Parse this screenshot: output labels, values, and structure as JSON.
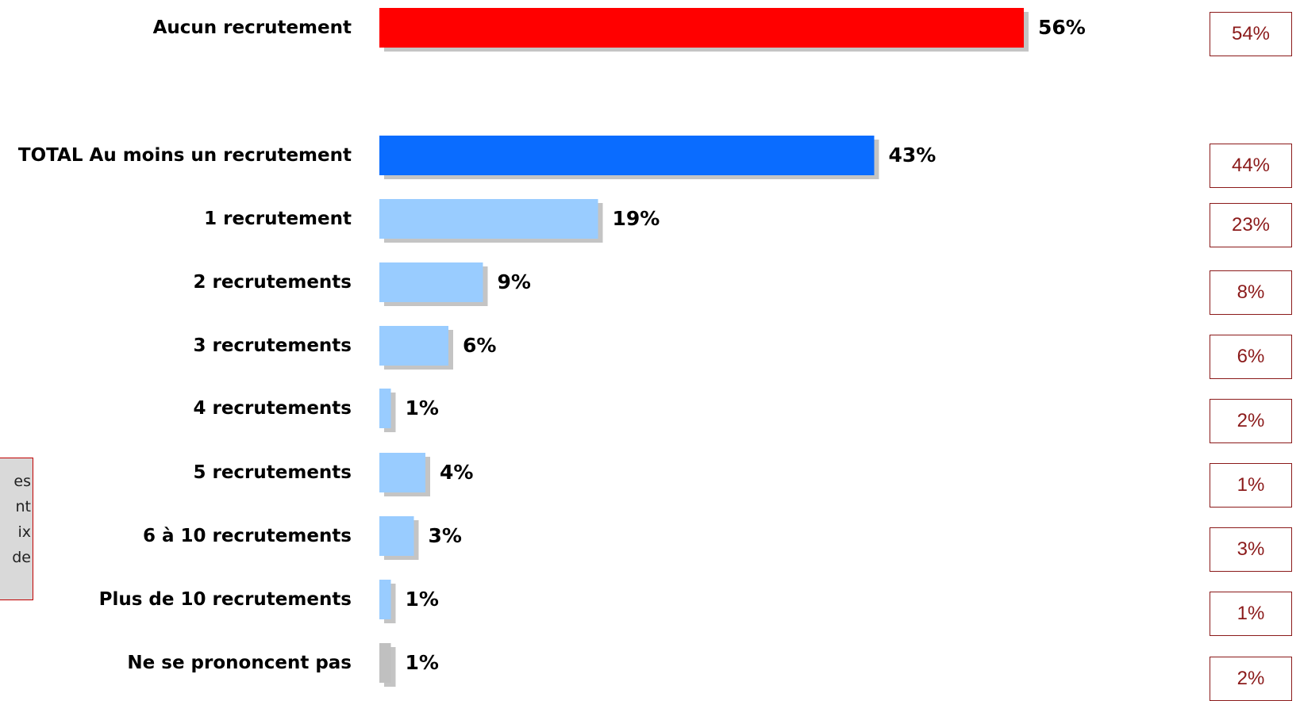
{
  "chart_data": {
    "type": "bar",
    "orientation": "horizontal",
    "categories": [
      "Aucun recrutement",
      "TOTAL Au moins un recrutement",
      "1 recrutement",
      "2 recrutements",
      "3 recrutements",
      "4 recrutements",
      "5 recrutements",
      "6 à 10 recrutements",
      "Plus de 10 recrutements",
      "Ne se prononcent pas"
    ],
    "series": [
      {
        "values": [
          56,
          43,
          19,
          9,
          6,
          1,
          4,
          3,
          1,
          1
        ],
        "value_labels": [
          "56%",
          "43%",
          "19%",
          "9%",
          "6%",
          "1%",
          "4%",
          "3%",
          "1%",
          "1%"
        ],
        "colors": [
          "#ff0000",
          "#0a6cff",
          "#99ccff",
          "#99ccff",
          "#99ccff",
          "#99ccff",
          "#99ccff",
          "#99ccff",
          "#99ccff",
          "#c0c0c0"
        ]
      },
      {
        "values": [
          54,
          44,
          23,
          8,
          6,
          2,
          1,
          3,
          1,
          2
        ],
        "value_labels": [
          "54%",
          "44%",
          "23%",
          "8%",
          "6%",
          "2%",
          "1%",
          "3%",
          "1%",
          "2%"
        ],
        "color": "#8b1a1a"
      }
    ],
    "xlim": [
      0,
      60
    ],
    "grid": false,
    "legend": "none"
  },
  "note": {
    "lines": [
      "es",
      "nt",
      "ix",
      "de"
    ]
  }
}
